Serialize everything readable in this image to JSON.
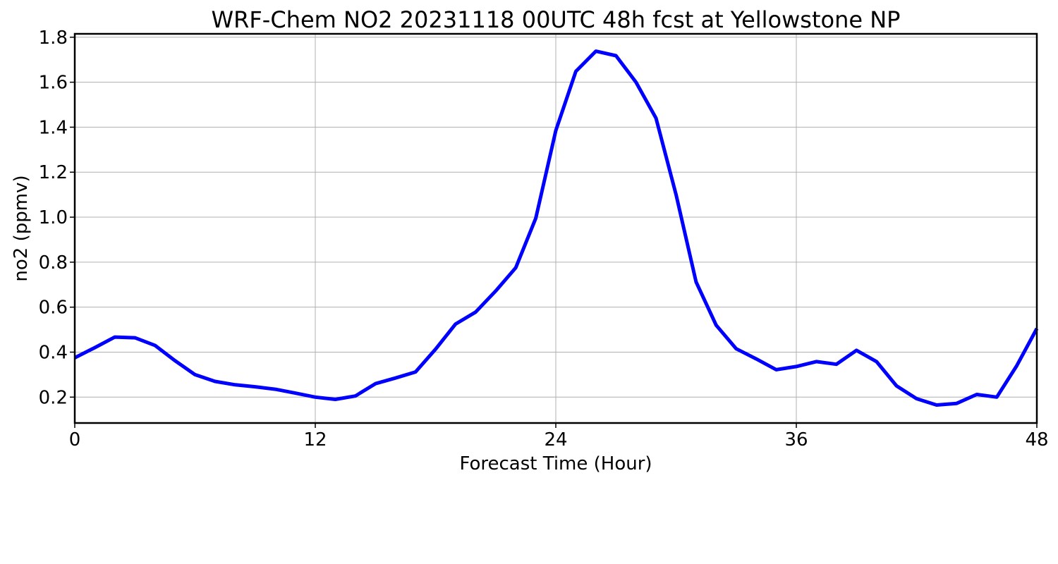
{
  "chart_data": {
    "type": "line",
    "title": "WRF-Chem NO2  20231118 00UTC 48h fcst at Yellowstone NP",
    "xlabel": "Forecast Time (Hour)",
    "ylabel": "no2  (ppmv)",
    "xlim": [
      0,
      48
    ],
    "ylim": [
      0.085,
      1.815
    ],
    "xticks": [
      0,
      12,
      24,
      36,
      48
    ],
    "xtick_labels": [
      "0",
      "12",
      "24",
      "36",
      "48"
    ],
    "yticks": [
      0.2,
      0.4,
      0.6,
      0.8,
      1.0,
      1.2,
      1.4,
      1.6,
      1.8
    ],
    "ytick_labels": [
      "0.2",
      "0.4",
      "0.6",
      "0.8",
      "1.0",
      "1.2",
      "1.4",
      "1.6",
      "1.8"
    ],
    "grid": true,
    "series": [
      {
        "color": "#0000ff",
        "x": [
          0,
          1,
          2,
          3,
          4,
          5,
          6,
          7,
          8,
          9,
          10,
          11,
          12,
          13,
          14,
          15,
          16,
          17,
          18,
          19,
          20,
          21,
          22,
          23,
          24,
          25,
          26,
          27,
          28,
          29,
          30,
          31,
          32,
          33,
          34,
          35,
          36,
          37,
          38,
          39,
          40,
          41,
          42,
          43,
          44,
          45,
          46,
          47,
          48
        ],
        "values": [
          0.375,
          0.42,
          0.467,
          0.464,
          0.43,
          0.362,
          0.3,
          0.27,
          0.255,
          0.246,
          0.235,
          0.218,
          0.2,
          0.19,
          0.205,
          0.26,
          0.285,
          0.312,
          0.413,
          0.525,
          0.578,
          0.672,
          0.775,
          0.995,
          1.385,
          1.648,
          1.738,
          1.718,
          1.6,
          1.44,
          1.1,
          0.712,
          0.52,
          0.415,
          0.37,
          0.322,
          0.336,
          0.358,
          0.346,
          0.408,
          0.358,
          0.25,
          0.193,
          0.165,
          0.172,
          0.212,
          0.2,
          0.34,
          0.505
        ]
      }
    ]
  }
}
